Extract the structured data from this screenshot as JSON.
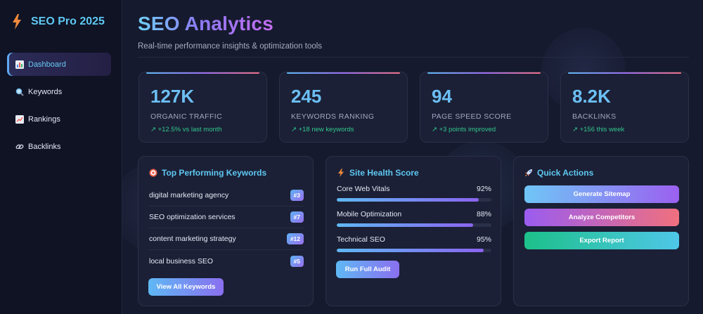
{
  "app": {
    "title": "SEO Pro 2025",
    "logo_icon": "lightning-icon"
  },
  "sidebar": {
    "items": [
      {
        "label": "Dashboard",
        "icon": "chart-icon",
        "active": true
      },
      {
        "label": "Keywords",
        "icon": "magnifier-icon",
        "active": false
      },
      {
        "label": "Rankings",
        "icon": "trend-icon",
        "active": false
      },
      {
        "label": "Backlinks",
        "icon": "link-icon",
        "active": false
      }
    ]
  },
  "header": {
    "title": "SEO Analytics",
    "subtitle": "Real-time performance insights & optimization tools"
  },
  "stats": [
    {
      "value": "127K",
      "label": "ORGANIC TRAFFIC",
      "change": "↗ +12.5% vs last month"
    },
    {
      "value": "245",
      "label": "KEYWORDS RANKING",
      "change": "↗ +18 new keywords"
    },
    {
      "value": "94",
      "label": "PAGE SPEED SCORE",
      "change": "↗ +3 points improved"
    },
    {
      "value": "8.2K",
      "label": "BACKLINKS",
      "change": "↗ +156 this week"
    }
  ],
  "keywords_panel": {
    "title": "Top Performing Keywords",
    "icon": "target-icon",
    "rows": [
      {
        "keyword": "digital marketing agency",
        "rank": "#3"
      },
      {
        "keyword": "SEO optimization services",
        "rank": "#7"
      },
      {
        "keyword": "content marketing strategy",
        "rank": "#12"
      },
      {
        "keyword": "local business SEO",
        "rank": "#5"
      }
    ],
    "button": "View All Keywords"
  },
  "health_panel": {
    "title": "Site Health Score",
    "icon": "lightning-icon",
    "items": [
      {
        "label": "Core Web Vitals",
        "value": "92%",
        "pct": 92
      },
      {
        "label": "Mobile Optimization",
        "value": "88%",
        "pct": 88
      },
      {
        "label": "Technical SEO",
        "value": "95%",
        "pct": 95
      }
    ],
    "button": "Run Full Audit"
  },
  "actions_panel": {
    "title": "Quick Actions",
    "icon": "rocket-icon",
    "buttons": [
      "Generate Sitemap",
      "Analyze Competitors",
      "Export Report"
    ]
  },
  "colors": {
    "accent": "#5fc8f2",
    "positive": "#32c78c",
    "background": "#161a2e"
  }
}
